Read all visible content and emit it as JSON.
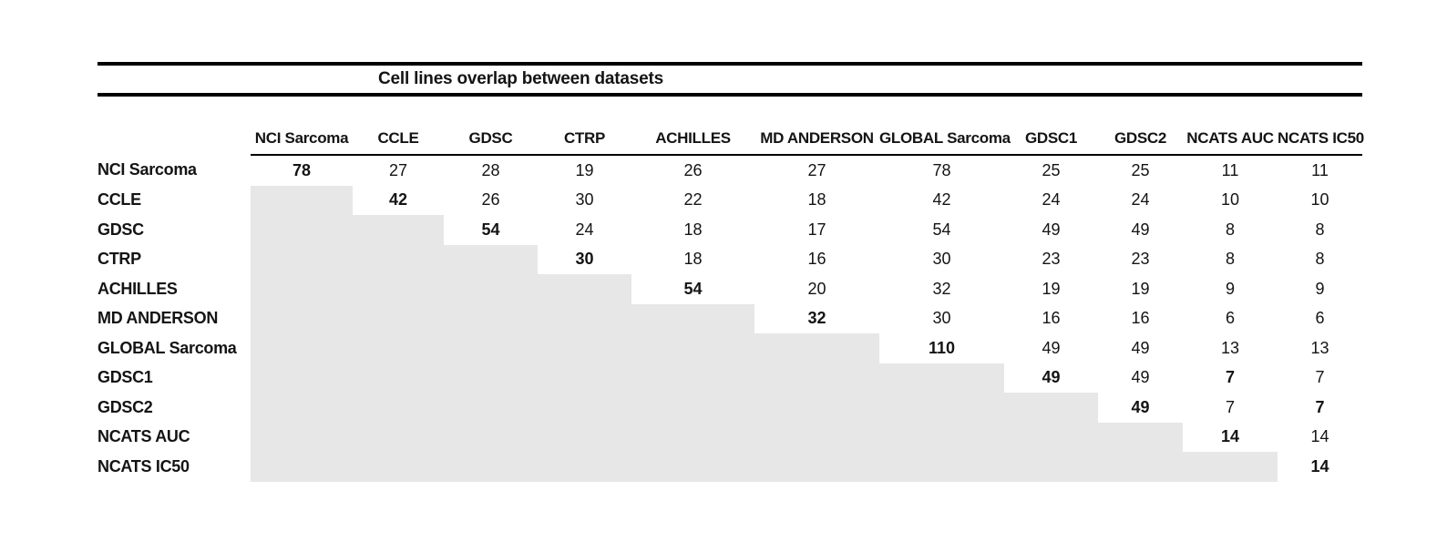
{
  "chart_data": {
    "type": "table",
    "title": "Cell lines overlap between datasets",
    "datasets": [
      "NCI Sarcoma",
      "CCLE",
      "GDSC",
      "CTRP",
      "ACHILLES",
      "MD ANDERSON",
      "GLOBAL Sarcoma",
      "GDSC1",
      "GDSC2",
      "NCATS AUC",
      "NCATS IC50"
    ],
    "matrix": [
      [
        78,
        27,
        28,
        19,
        26,
        27,
        78,
        25,
        25,
        11,
        11
      ],
      [
        null,
        42,
        26,
        30,
        22,
        18,
        42,
        24,
        24,
        10,
        10
      ],
      [
        null,
        null,
        54,
        24,
        18,
        17,
        54,
        49,
        49,
        8,
        8
      ],
      [
        null,
        null,
        null,
        30,
        18,
        16,
        30,
        23,
        23,
        8,
        8
      ],
      [
        null,
        null,
        null,
        null,
        54,
        20,
        32,
        19,
        19,
        9,
        9
      ],
      [
        null,
        null,
        null,
        null,
        null,
        32,
        30,
        16,
        16,
        6,
        6
      ],
      [
        null,
        null,
        null,
        null,
        null,
        null,
        110,
        49,
        49,
        13,
        13
      ],
      [
        null,
        null,
        null,
        null,
        null,
        null,
        null,
        49,
        49,
        7,
        7
      ],
      [
        null,
        null,
        null,
        null,
        null,
        null,
        null,
        null,
        49,
        7,
        7
      ],
      [
        null,
        null,
        null,
        null,
        null,
        null,
        null,
        null,
        null,
        14,
        14
      ],
      [
        null,
        null,
        null,
        null,
        null,
        null,
        null,
        null,
        null,
        null,
        14
      ]
    ],
    "bold_cells": [
      [
        0,
        0
      ],
      [
        1,
        1
      ],
      [
        2,
        2
      ],
      [
        3,
        3
      ],
      [
        4,
        4
      ],
      [
        5,
        5
      ],
      [
        6,
        6
      ],
      [
        7,
        7
      ],
      [
        8,
        8
      ],
      [
        9,
        9
      ],
      [
        10,
        10
      ],
      [
        7,
        9
      ],
      [
        8,
        10
      ]
    ],
    "layout_note": "lower triangle shaded, upper triangle and diagonal contain values"
  },
  "colors": {
    "shade": "#e7e7e7",
    "rule": "#000000",
    "text": "#141414"
  }
}
